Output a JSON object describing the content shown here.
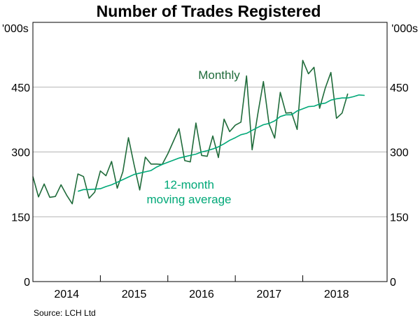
{
  "chart_data": {
    "type": "line",
    "title": "Number of Trades Registered",
    "units_left": "'000s",
    "units_right": "'000s",
    "ylim": [
      0,
      600
    ],
    "yticks": [
      0,
      150,
      300,
      450
    ],
    "ytick_labels": [
      "0",
      "150",
      "300",
      "450"
    ],
    "xlim": [
      2013.5,
      2018.75
    ],
    "year_labels": [
      {
        "label": "2014",
        "center": 2014.0
      },
      {
        "label": "2015",
        "center": 2015.0
      },
      {
        "label": "2016",
        "center": 2016.0
      },
      {
        "label": "2017",
        "center": 2017.0
      },
      {
        "label": "2018",
        "center": 2018.0
      }
    ],
    "year_boundaries": [
      2014.5,
      2015.5,
      2016.5,
      2017.5
    ],
    "series": [
      {
        "name": "Monthly",
        "color": "#1f6b3a",
        "start": 2013.5,
        "step": 0.0833333,
        "values": [
          243,
          196,
          226,
          195,
          197,
          224,
          200,
          180,
          249,
          243,
          193,
          207,
          256,
          245,
          278,
          216,
          254,
          333,
          270,
          212,
          288,
          272,
          272,
          271,
          296,
          325,
          354,
          280,
          277,
          367,
          292,
          290,
          337,
          287,
          376,
          347,
          362,
          369,
          476,
          305,
          388,
          463,
          365,
          332,
          438,
          390,
          391,
          352,
          512,
          481,
          496,
          401,
          448,
          484,
          378,
          390,
          435
        ]
      },
      {
        "name": "12-month moving average",
        "color": "#00a878",
        "start": 2014.1667,
        "step": 0.0833333,
        "values": [
          209,
          213,
          213,
          214,
          215,
          220,
          224,
          230,
          236,
          242,
          248,
          251,
          254,
          257,
          265,
          271,
          276,
          281,
          286,
          289,
          292,
          295,
          300,
          303,
          307,
          312,
          319,
          327,
          333,
          340,
          343,
          350,
          357,
          363,
          366,
          372,
          382,
          386,
          386,
          395,
          400,
          405,
          406,
          411,
          413,
          420,
          423,
          425,
          425,
          428,
          432,
          431
        ]
      }
    ],
    "annotations": [
      {
        "lines": [
          "Monthly"
        ],
        "series": 0
      },
      {
        "lines": [
          "12-month",
          "moving average"
        ],
        "series": 1
      }
    ],
    "source": "Source:   LCH Ltd"
  }
}
